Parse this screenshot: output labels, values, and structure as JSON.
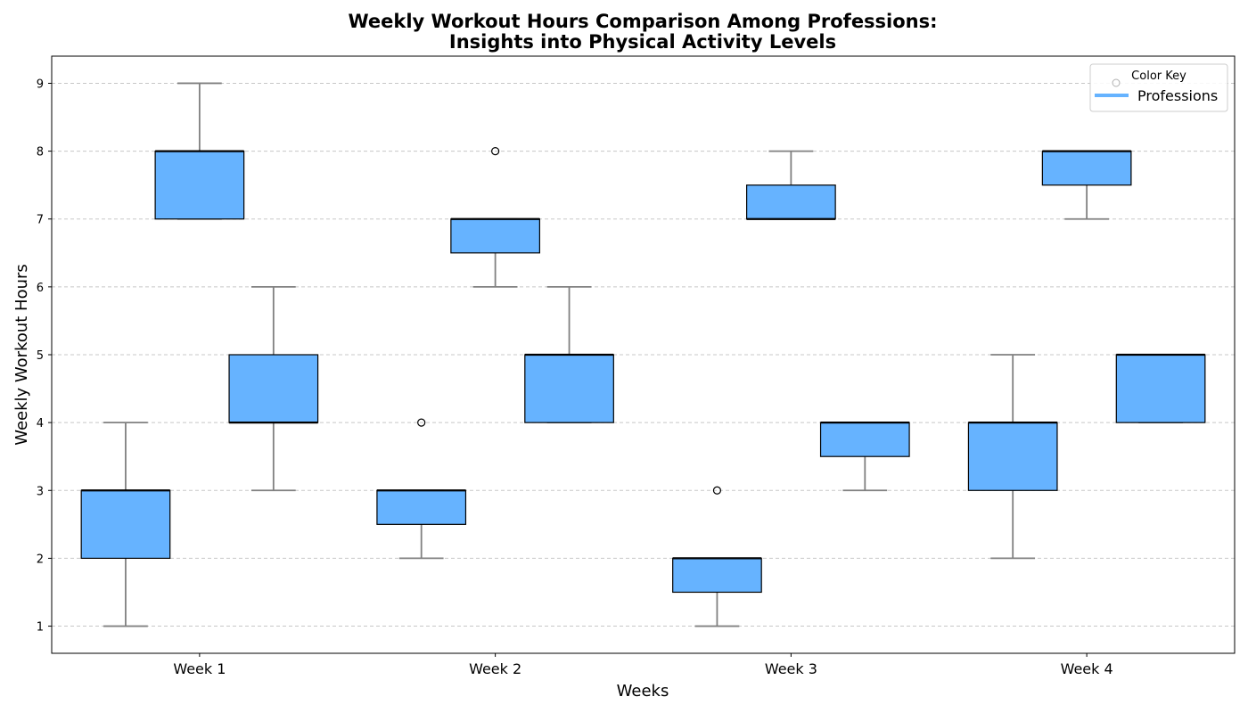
{
  "chart_data": {
    "type": "box",
    "title_line1": "Weekly Workout Hours Comparison Among Professions:",
    "title_line2": "Insights into Physical Activity Levels",
    "xlabel": "Weeks",
    "ylabel": "Weekly Workout Hours",
    "categories": [
      "Week 1",
      "Week 2",
      "Week 3",
      "Week 4"
    ],
    "ylim": [
      0.6,
      9.4
    ],
    "yticks": [
      1,
      2,
      3,
      4,
      5,
      6,
      7,
      8,
      9
    ],
    "grid": "horizontal dashed",
    "legend": {
      "placement": "top-right",
      "title": "Color Key",
      "label": "Professions"
    },
    "colors": {
      "box_fill": "#66b3ff",
      "box_edge": "#000000",
      "median": "#000000",
      "whisker": "#808080",
      "grid": "#c8c8c8",
      "outlier": "#000000"
    },
    "boxes": [
      {
        "week": "Week 1",
        "position": 0.75,
        "whislo": 1,
        "q1": 2,
        "med": 3,
        "q3": 3,
        "whishi": 4,
        "fliers": []
      },
      {
        "week": "Week 1",
        "position": 1.0,
        "whislo": 7,
        "q1": 7,
        "med": 8,
        "q3": 8,
        "whishi": 9,
        "fliers": []
      },
      {
        "week": "Week 1",
        "position": 1.25,
        "whislo": 3,
        "q1": 4,
        "med": 4,
        "q3": 5,
        "whishi": 6,
        "fliers": []
      },
      {
        "week": "Week 2",
        "position": 1.75,
        "whislo": 2,
        "q1": 2.5,
        "med": 3,
        "q3": 3,
        "whishi": 3,
        "fliers": [
          4
        ]
      },
      {
        "week": "Week 2",
        "position": 2.0,
        "whislo": 6,
        "q1": 6.5,
        "med": 7,
        "q3": 7,
        "whishi": 7,
        "fliers": [
          8
        ]
      },
      {
        "week": "Week 2",
        "position": 2.25,
        "whislo": 4,
        "q1": 4,
        "med": 5,
        "q3": 5,
        "whishi": 6,
        "fliers": []
      },
      {
        "week": "Week 3",
        "position": 2.75,
        "whislo": 1,
        "q1": 1.5,
        "med": 2,
        "q3": 2,
        "whishi": 2,
        "fliers": [
          3
        ]
      },
      {
        "week": "Week 3",
        "position": 3.0,
        "whislo": 7,
        "q1": 7,
        "med": 7,
        "q3": 7.5,
        "whishi": 8,
        "fliers": []
      },
      {
        "week": "Week 3",
        "position": 3.25,
        "whislo": 3,
        "q1": 3.5,
        "med": 4,
        "q3": 4,
        "whishi": 4,
        "fliers": []
      },
      {
        "week": "Week 4",
        "position": 3.75,
        "whislo": 2,
        "q1": 3,
        "med": 4,
        "q3": 4,
        "whishi": 5,
        "fliers": []
      },
      {
        "week": "Week 4",
        "position": 4.0,
        "whislo": 7,
        "q1": 7.5,
        "med": 8,
        "q3": 8,
        "whishi": 8,
        "fliers": []
      },
      {
        "week": "Week 4",
        "position": 4.25,
        "whislo": 4,
        "q1": 4,
        "med": 5,
        "q3": 5,
        "whishi": 5,
        "fliers": []
      }
    ]
  }
}
